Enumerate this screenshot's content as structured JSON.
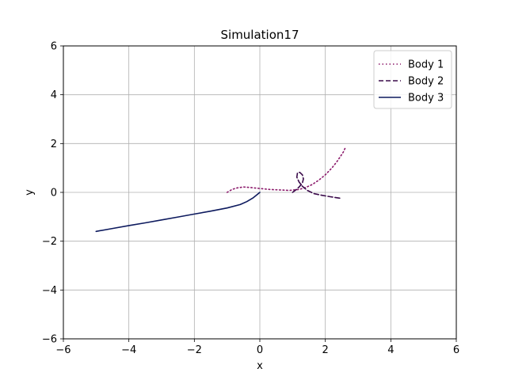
{
  "chart_data": {
    "type": "line",
    "title": "Simulation17",
    "xlabel": "x",
    "ylabel": "y",
    "xlim": [
      -6,
      6
    ],
    "ylim": [
      -6,
      6
    ],
    "xticks": [
      -6,
      -4,
      -2,
      0,
      2,
      4,
      6
    ],
    "yticks": [
      -6,
      -4,
      -2,
      0,
      2,
      4,
      6
    ],
    "xtick_labels": [
      "−6",
      "−4",
      "−2",
      "0",
      "2",
      "4",
      "6"
    ],
    "ytick_labels": [
      "−6",
      "−4",
      "−2",
      "0",
      "2",
      "4",
      "6"
    ],
    "grid": true,
    "legend_position": "top-right",
    "series": [
      {
        "name": "Body 1",
        "color": "#8b1a6b",
        "style": "dotted",
        "x": [
          -1.0,
          -0.85,
          -0.7,
          -0.5,
          -0.3,
          0.0,
          0.3,
          0.6,
          0.9,
          1.2,
          1.4,
          1.6,
          1.8,
          2.0,
          2.2,
          2.35,
          2.45,
          2.55,
          2.6
        ],
        "y": [
          0.0,
          0.12,
          0.18,
          0.22,
          0.2,
          0.16,
          0.12,
          0.1,
          0.08,
          0.12,
          0.2,
          0.32,
          0.5,
          0.72,
          1.0,
          1.25,
          1.45,
          1.65,
          1.8
        ]
      },
      {
        "name": "Body 2",
        "color": "#3a0a4a",
        "style": "dashed",
        "x": [
          1.0,
          1.1,
          1.2,
          1.3,
          1.33,
          1.3,
          1.22,
          1.15,
          1.13,
          1.2,
          1.3,
          1.45,
          1.65,
          1.9,
          2.15,
          2.45
        ],
        "y": [
          0.0,
          0.1,
          0.22,
          0.38,
          0.55,
          0.72,
          0.82,
          0.8,
          0.62,
          0.42,
          0.25,
          0.08,
          -0.05,
          -0.12,
          -0.18,
          -0.24
        ]
      },
      {
        "name": "Body 3",
        "color": "#0d1a5e",
        "style": "solid",
        "x": [
          -5.0,
          -4.5,
          -4.0,
          -3.5,
          -3.0,
          -2.5,
          -2.0,
          -1.5,
          -1.0,
          -0.6,
          -0.4,
          -0.2,
          -0.1,
          0.0
        ],
        "y": [
          -1.6,
          -1.48,
          -1.36,
          -1.25,
          -1.13,
          -1.01,
          -0.89,
          -0.77,
          -0.64,
          -0.5,
          -0.38,
          -0.22,
          -0.11,
          0.0
        ]
      }
    ]
  }
}
